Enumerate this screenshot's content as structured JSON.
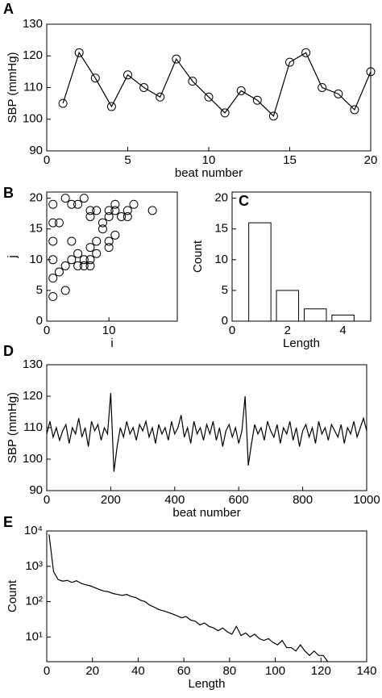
{
  "chart_data": [
    {
      "type": "line",
      "label": "A",
      "marker": "circle",
      "x_label": "beat number",
      "y_label": "SBP (mmHg)",
      "color": "#000000",
      "x": [
        1,
        2,
        3,
        4,
        5,
        6,
        7,
        8,
        9,
        10,
        11,
        12,
        13,
        14,
        15,
        16,
        17,
        18,
        19,
        20
      ],
      "values": [
        105,
        121,
        113,
        104,
        114,
        110,
        107,
        119,
        112,
        107,
        102,
        109,
        106,
        101,
        118,
        121,
        110,
        108,
        103,
        115
      ],
      "xlim": [
        0,
        20
      ],
      "xticks": [
        0,
        5,
        10,
        15,
        20
      ],
      "ylim": [
        90,
        130
      ],
      "yticks": [
        90,
        100,
        110,
        120,
        130
      ]
    },
    {
      "type": "scatter",
      "label": "B",
      "marker": "circle",
      "x_label": "i",
      "y_label": "j",
      "color": "#000000",
      "x": [
        1,
        3,
        4,
        5,
        6,
        1,
        7,
        8,
        7,
        1,
        2,
        4,
        5,
        8,
        7,
        9,
        9,
        10,
        10,
        11,
        11,
        12,
        13,
        13,
        14,
        17,
        10,
        10,
        11,
        1,
        1,
        2,
        3,
        4,
        5,
        6,
        7,
        7,
        8,
        3,
        1,
        6
      ],
      "values": [
        19,
        20,
        19,
        19,
        20,
        16,
        18,
        18,
        17,
        13,
        16,
        13,
        11,
        13,
        12,
        16,
        15,
        17,
        18,
        18,
        19,
        17,
        18,
        17,
        19,
        18,
        13,
        12,
        14,
        10,
        7,
        8,
        9,
        10,
        9,
        9,
        9,
        10,
        11,
        5,
        4,
        10
      ],
      "xlim": [
        0,
        21
      ],
      "xticks": [
        0,
        10
      ],
      "ylim": [
        0,
        21
      ],
      "yticks": [
        0,
        5,
        10,
        15,
        20
      ]
    },
    {
      "type": "bar",
      "label": "C",
      "x_label": "Length",
      "y_label": "Count",
      "color": "#ffffff",
      "x": [
        1,
        2,
        3,
        4
      ],
      "values": [
        16,
        5,
        2,
        1
      ],
      "xlim": [
        0,
        5
      ],
      "xticks": [
        0,
        2,
        4
      ],
      "ylim": [
        0,
        21
      ],
      "yticks": [
        0,
        5,
        10,
        15,
        20
      ]
    },
    {
      "type": "line",
      "label": "D",
      "x_label": "beat number",
      "y_label": "SBP (mmHg)",
      "color": "#000000",
      "x": [
        0,
        10,
        20,
        30,
        40,
        50,
        60,
        70,
        80,
        90,
        100,
        110,
        120,
        130,
        140,
        150,
        160,
        170,
        180,
        190,
        200,
        210,
        220,
        230,
        240,
        250,
        260,
        270,
        280,
        290,
        300,
        310,
        320,
        330,
        340,
        350,
        360,
        370,
        380,
        390,
        400,
        410,
        420,
        430,
        440,
        450,
        460,
        470,
        480,
        490,
        500,
        510,
        520,
        530,
        540,
        550,
        560,
        570,
        580,
        590,
        600,
        610,
        620,
        630,
        640,
        650,
        660,
        670,
        680,
        690,
        700,
        710,
        720,
        730,
        740,
        750,
        760,
        770,
        780,
        790,
        800,
        810,
        820,
        830,
        840,
        850,
        860,
        870,
        880,
        890,
        900,
        910,
        920,
        930,
        940,
        950,
        960,
        970,
        980,
        990,
        1000
      ],
      "values": [
        108,
        112,
        107,
        110,
        106,
        109,
        111,
        105,
        110,
        108,
        113,
        107,
        110,
        104,
        112,
        109,
        111,
        106,
        110,
        108,
        121,
        96,
        104,
        110,
        107,
        112,
        108,
        110,
        106,
        111,
        109,
        112,
        107,
        110,
        105,
        111,
        108,
        110,
        106,
        112,
        108,
        110,
        114,
        107,
        110,
        105,
        112,
        108,
        110,
        106,
        111,
        108,
        112,
        106,
        110,
        104,
        109,
        111,
        107,
        110,
        105,
        109,
        120,
        98,
        105,
        111,
        108,
        110,
        106,
        112,
        109,
        107,
        111,
        105,
        110,
        108,
        112,
        106,
        110,
        104,
        109,
        111,
        107,
        110,
        105,
        112,
        108,
        110,
        106,
        111,
        109,
        107,
        111,
        105,
        110,
        108,
        112,
        107,
        110,
        113,
        109
      ],
      "xlim": [
        0,
        1000
      ],
      "xticks": [
        0,
        200,
        400,
        600,
        800,
        1000
      ],
      "ylim": [
        90,
        130
      ],
      "yticks": [
        90,
        100,
        110,
        120,
        130
      ]
    },
    {
      "type": "line",
      "label": "E",
      "x_label": "Length",
      "y_label": "Count",
      "color": "#000000",
      "log_y": true,
      "x": [
        1,
        3,
        5,
        7,
        9,
        11,
        13,
        15,
        17,
        19,
        21,
        23,
        25,
        27,
        29,
        31,
        33,
        35,
        37,
        39,
        41,
        43,
        45,
        47,
        49,
        51,
        53,
        55,
        57,
        59,
        61,
        63,
        65,
        67,
        69,
        71,
        73,
        75,
        77,
        79,
        81,
        83,
        85,
        87,
        89,
        91,
        93,
        95,
        97,
        99,
        101,
        103,
        105,
        107,
        109,
        111,
        113,
        115,
        117,
        119,
        121,
        123
      ],
      "values": [
        8000,
        700,
        420,
        380,
        400,
        350,
        390,
        330,
        300,
        280,
        250,
        220,
        200,
        190,
        170,
        160,
        150,
        160,
        140,
        130,
        110,
        100,
        80,
        70,
        60,
        55,
        50,
        45,
        40,
        35,
        38,
        30,
        28,
        22,
        25,
        20,
        18,
        15,
        18,
        14,
        12,
        20,
        11,
        13,
        10,
        12,
        9,
        8,
        9,
        7,
        6,
        8,
        5,
        5,
        4,
        6,
        4,
        3,
        4,
        3,
        3,
        2
      ],
      "xlim": [
        0,
        140
      ],
      "xticks": [
        0,
        20,
        40,
        60,
        80,
        100,
        120,
        140
      ],
      "ylim": [
        2,
        10000
      ],
      "yticks": [
        {
          "value": 10,
          "label": "10¹"
        },
        {
          "value": 100,
          "label": "10²"
        },
        {
          "value": 1000,
          "label": "10³"
        },
        {
          "value": 10000,
          "label": "10⁴"
        }
      ]
    }
  ]
}
